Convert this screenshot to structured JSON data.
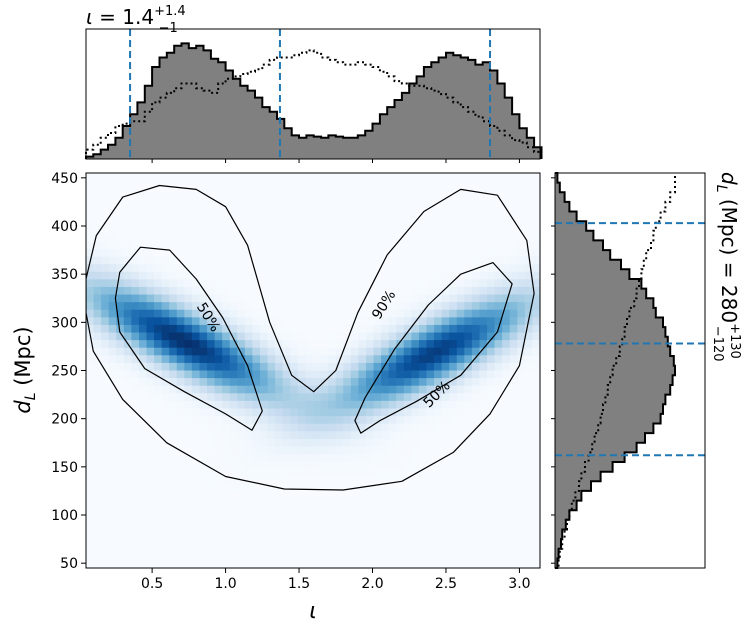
{
  "chart_data": [
    {
      "panel": "joint",
      "type": "heatmap",
      "xlabel": "ι",
      "ylabel": "d_L (Mpc)",
      "xlim": [
        0.05,
        3.14
      ],
      "ylim": [
        45,
        455
      ],
      "xticks": [
        "0.5",
        "1.0",
        "1.5",
        "2.0",
        "2.5",
        "3.0"
      ],
      "yticks": [
        "50",
        "100",
        "150",
        "200",
        "250",
        "300",
        "350",
        "400",
        "450"
      ],
      "colormap": "Blues",
      "density_peaks": [
        {
          "x": 0.72,
          "y": 280,
          "weight": 1.0
        },
        {
          "x": 2.42,
          "y": 268,
          "weight": 0.95
        }
      ],
      "contours": [
        {
          "label": "90%",
          "points": [
            [
              0.05,
              345
            ],
            [
              0.12,
              390
            ],
            [
              0.3,
              430
            ],
            [
              0.55,
              442
            ],
            [
              0.8,
              438
            ],
            [
              1.0,
              420
            ],
            [
              1.15,
              380
            ],
            [
              1.3,
              300
            ],
            [
              1.45,
              245
            ],
            [
              1.6,
              228
            ],
            [
              1.75,
              250
            ],
            [
              1.9,
              310
            ],
            [
              2.1,
              370
            ],
            [
              2.35,
              415
            ],
            [
              2.6,
              438
            ],
            [
              2.85,
              432
            ],
            [
              3.05,
              385
            ],
            [
              3.1,
              330
            ],
            [
              3.0,
              255
            ],
            [
              2.8,
              205
            ],
            [
              2.55,
              165
            ],
            [
              2.2,
              135
            ],
            [
              1.8,
              126
            ],
            [
              1.4,
              127
            ],
            [
              1.0,
              140
            ],
            [
              0.6,
              175
            ],
            [
              0.3,
              220
            ],
            [
              0.1,
              270
            ],
            [
              0.05,
              310
            ]
          ]
        },
        {
          "label": "50%",
          "points": [
            [
              0.28,
              352
            ],
            [
              0.42,
              378
            ],
            [
              0.62,
              375
            ],
            [
              0.8,
              345
            ],
            [
              0.98,
              305
            ],
            [
              1.15,
              255
            ],
            [
              1.25,
              208
            ],
            [
              1.18,
              188
            ],
            [
              1.0,
              205
            ],
            [
              0.72,
              228
            ],
            [
              0.45,
              252
            ],
            [
              0.28,
              290
            ],
            [
              0.25,
              325
            ]
          ]
        },
        {
          "label": "50%",
          "points": [
            [
              1.92,
              185
            ],
            [
              2.05,
              198
            ],
            [
              2.3,
              218
            ],
            [
              2.6,
              245
            ],
            [
              2.85,
              290
            ],
            [
              2.95,
              340
            ],
            [
              2.82,
              362
            ],
            [
              2.6,
              350
            ],
            [
              2.38,
              318
            ],
            [
              2.15,
              272
            ],
            [
              1.95,
              222
            ],
            [
              1.88,
              198
            ]
          ]
        }
      ],
      "contour_labels": [
        {
          "text": "50%",
          "x": 0.88,
          "y": 305,
          "angle": 58
        },
        {
          "text": "90%",
          "x": 2.08,
          "y": 318,
          "angle": -58
        },
        {
          "text": "50%",
          "x": 2.44,
          "y": 225,
          "angle": -45
        }
      ]
    },
    {
      "panel": "top-marginal",
      "type": "histogram",
      "title": "ι = 1.4",
      "title_sup": "+1.4",
      "title_sub": "−1",
      "bin_edges_start": 0.05,
      "bin_width": 0.05,
      "filled_series": [
        2,
        4,
        8,
        12,
        18,
        28,
        38,
        48,
        62,
        78,
        86,
        90,
        96,
        98,
        94,
        96,
        92,
        85,
        82,
        75,
        68,
        62,
        58,
        52,
        44,
        40,
        34,
        26,
        20,
        18,
        20,
        19,
        18,
        20,
        19,
        18,
        18,
        20,
        24,
        30,
        38,
        44,
        50,
        56,
        64,
        70,
        78,
        82,
        86,
        90,
        88,
        86,
        84,
        80,
        82,
        75,
        64,
        52,
        38,
        26,
        18,
        10
      ],
      "dotted_series": [
        8,
        12,
        18,
        22,
        28,
        30,
        32,
        32,
        40,
        48,
        52,
        56,
        60,
        64,
        64,
        60,
        58,
        56,
        64,
        68,
        70,
        72,
        74,
        76,
        80,
        84,
        86,
        86,
        88,
        90,
        92,
        90,
        86,
        84,
        82,
        80,
        80,
        82,
        80,
        78,
        74,
        70,
        66,
        64,
        62,
        62,
        60,
        58,
        55,
        52,
        48,
        44,
        40,
        36,
        32,
        28,
        24,
        20,
        16,
        14,
        10,
        6
      ],
      "ymax": 100,
      "markers": [
        0.35,
        1.37,
        2.8
      ]
    },
    {
      "panel": "right-marginal",
      "type": "histogram",
      "ylabel": "d_L (Mpc) = 280",
      "ylabel_sup": "+130",
      "ylabel_sub": "−120",
      "bin_edges_start": 45,
      "bin_width": 10,
      "filled_series": [
        2,
        3,
        5,
        6,
        9,
        12,
        18,
        22,
        30,
        38,
        48,
        58,
        68,
        75,
        82,
        88,
        90,
        92,
        96,
        98,
        100,
        99,
        96,
        94,
        92,
        90,
        84,
        82,
        76,
        72,
        62,
        55,
        46,
        40,
        32,
        26,
        18,
        12,
        8,
        4,
        2
      ],
      "dotted_series": [
        3,
        4,
        6,
        8,
        10,
        12,
        14,
        17,
        20,
        22,
        25,
        28,
        31,
        33,
        36,
        38,
        40,
        42,
        44,
        46,
        48,
        51,
        54,
        56,
        58,
        60,
        62,
        66,
        68,
        70,
        72,
        74,
        76,
        80,
        82,
        84,
        88,
        92,
        96,
        100,
        100
      ],
      "xmax": 100,
      "markers": [
        162,
        278,
        403
      ]
    }
  ]
}
